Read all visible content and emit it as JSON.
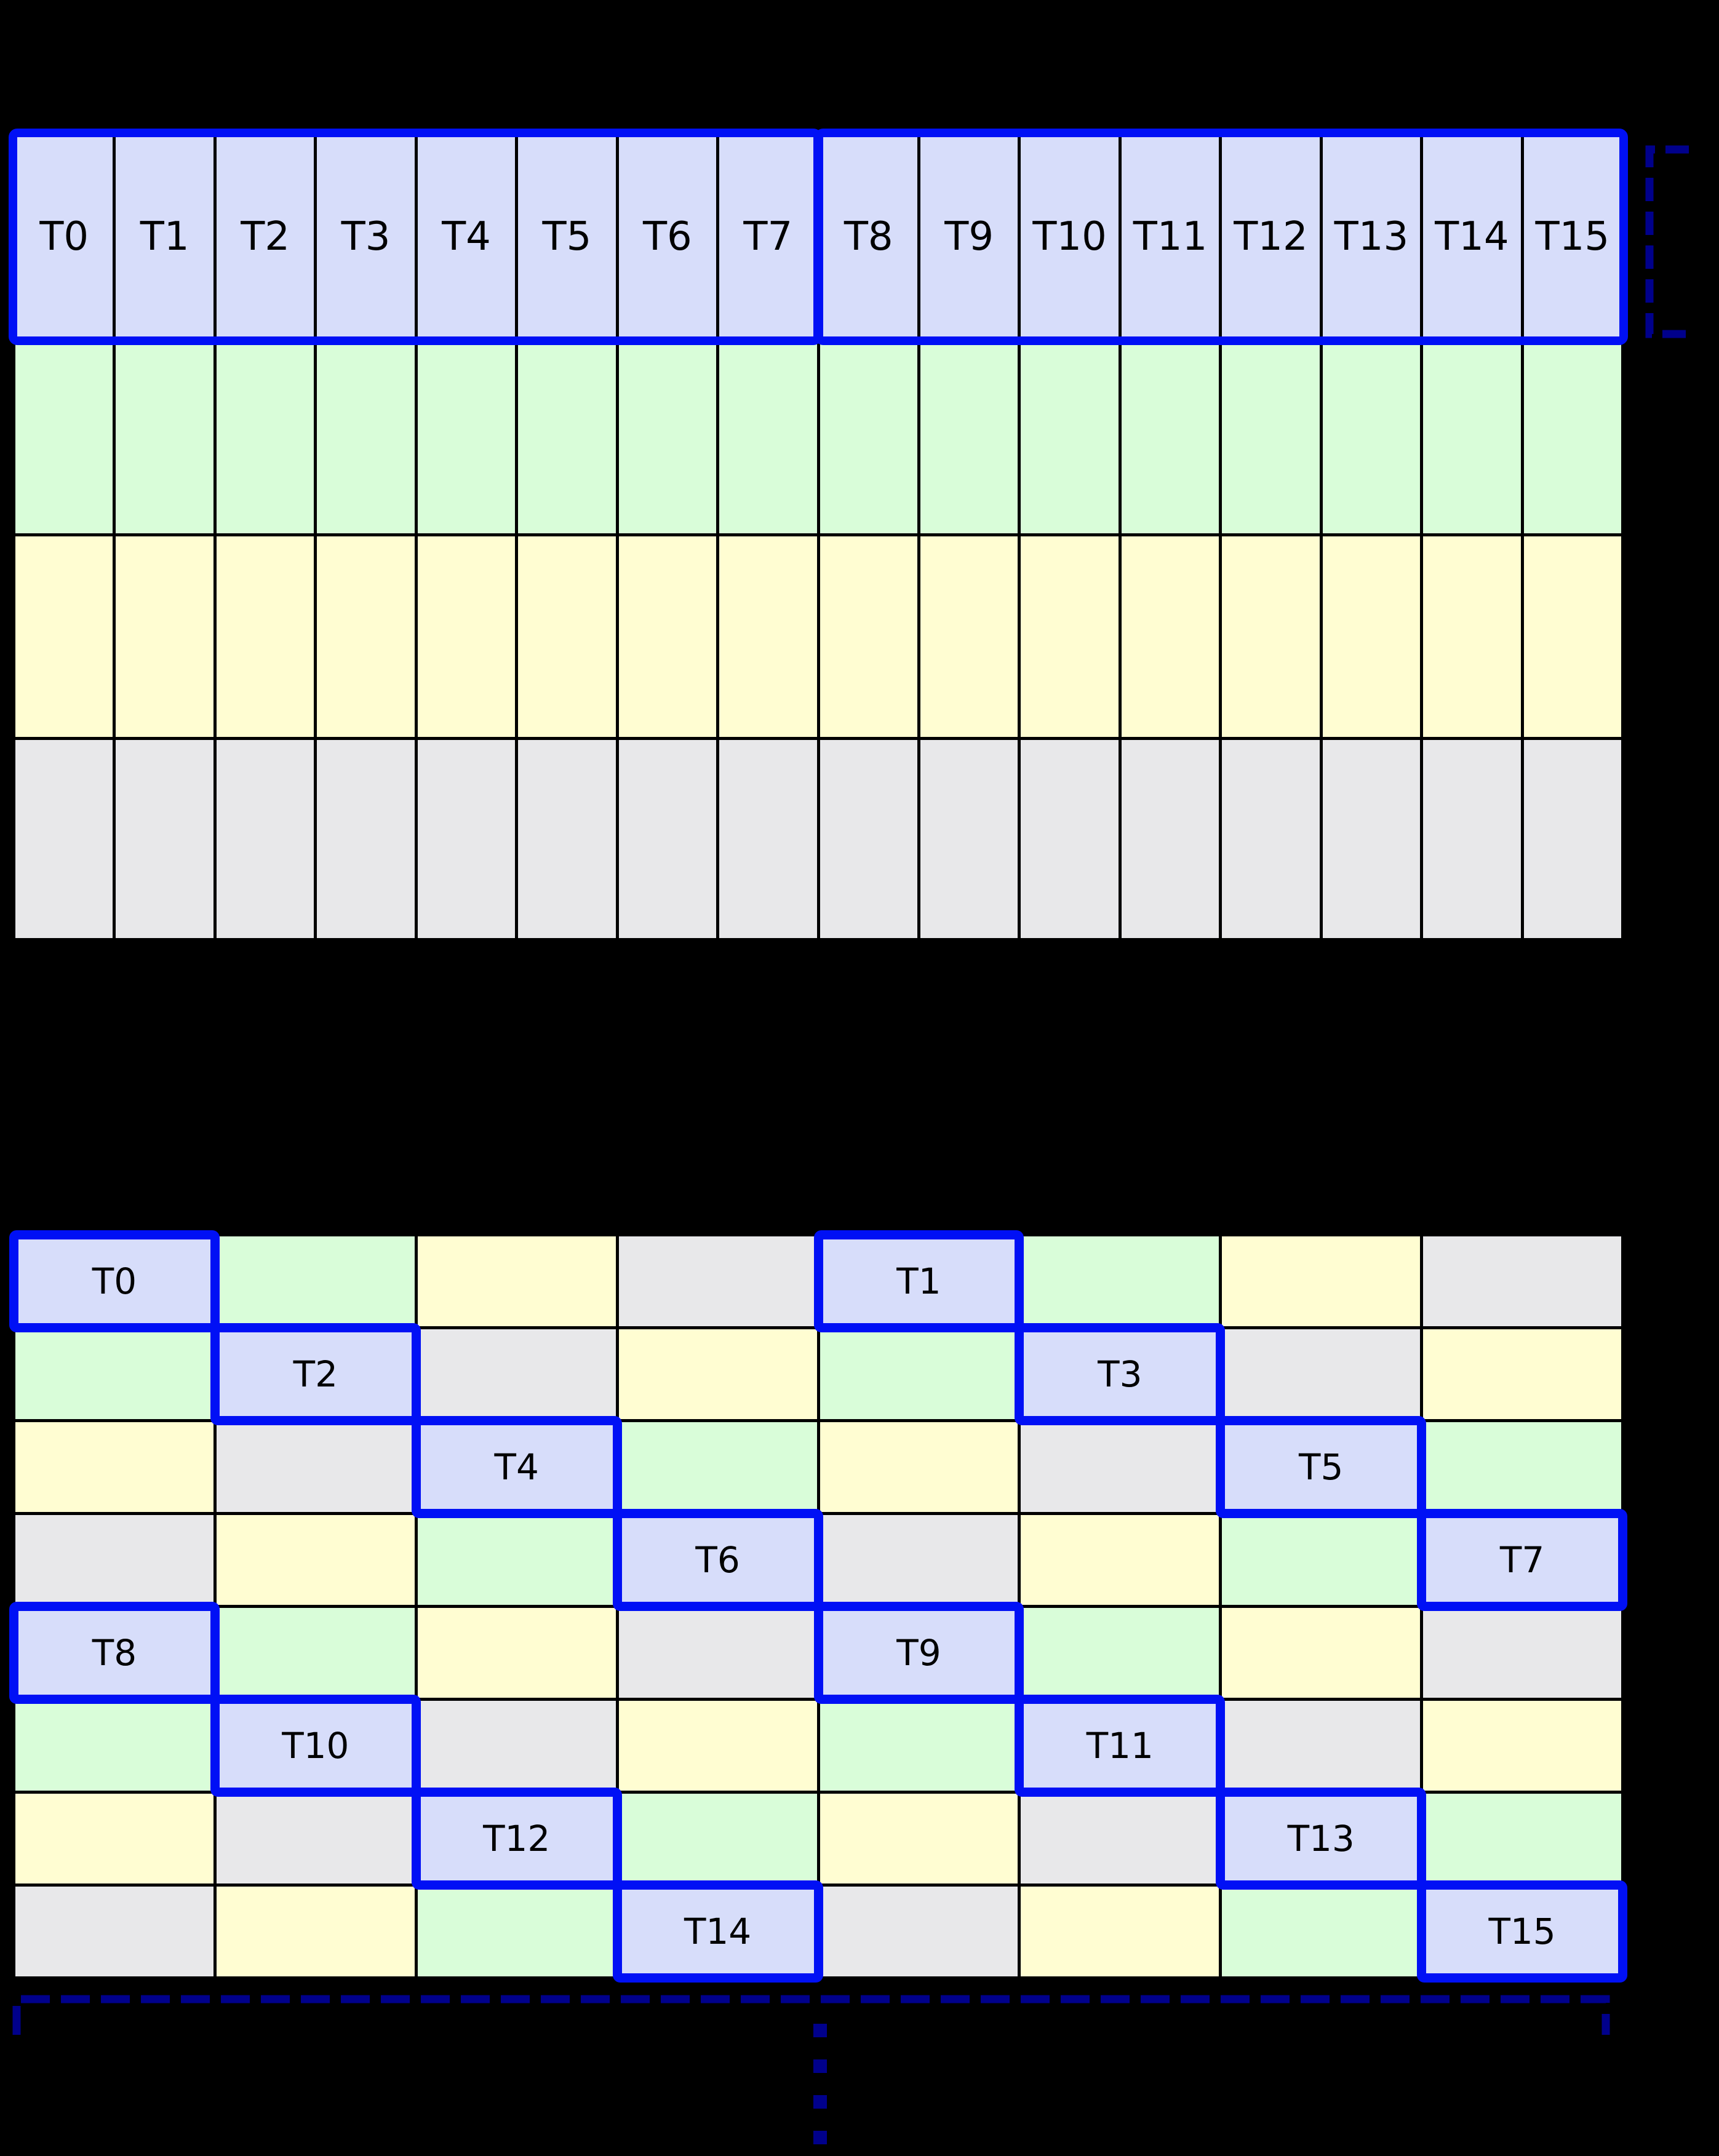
{
  "palette": {
    "blue_outline": "#0010f5",
    "navy": "#00008b",
    "lavender": "#d7ddfa",
    "green": "#d9fdd9",
    "yellow": "#fffdd2",
    "gray": "#e8e8ea",
    "background": "#000000",
    "grid_line": "#000000",
    "label_color": "#000000"
  },
  "top_grid": {
    "columns": 16,
    "header_labels": [
      "T0",
      "T1",
      "T2",
      "T3",
      "T4",
      "T5",
      "T6",
      "T7",
      "T8",
      "T9",
      "T10",
      "T11",
      "T12",
      "T13",
      "T14",
      "T15"
    ],
    "header_groups": [
      {
        "name": "threads-0-7",
        "start": 0,
        "end": 7
      },
      {
        "name": "threads-8-15",
        "start": 8,
        "end": 15
      }
    ],
    "body_rows": [
      "green",
      "yellow",
      "gray"
    ]
  },
  "header_bracket": {
    "style": "dashed",
    "color_key": "navy",
    "opens": "right"
  },
  "bottom_grid": {
    "rows": 8,
    "columns": 8,
    "color_cycle": [
      "blue",
      "green",
      "yellow",
      "gray"
    ],
    "cell_colors": [
      [
        "blue",
        "green",
        "yellow",
        "gray",
        "blue",
        "green",
        "yellow",
        "gray"
      ],
      [
        "green",
        "blue",
        "gray",
        "yellow",
        "green",
        "blue",
        "gray",
        "yellow"
      ],
      [
        "yellow",
        "gray",
        "blue",
        "green",
        "yellow",
        "gray",
        "blue",
        "green"
      ],
      [
        "gray",
        "yellow",
        "green",
        "blue",
        "gray",
        "yellow",
        "green",
        "blue"
      ],
      [
        "blue",
        "green",
        "yellow",
        "gray",
        "blue",
        "green",
        "yellow",
        "gray"
      ],
      [
        "green",
        "blue",
        "gray",
        "yellow",
        "green",
        "blue",
        "gray",
        "yellow"
      ],
      [
        "yellow",
        "gray",
        "blue",
        "green",
        "yellow",
        "gray",
        "blue",
        "green"
      ],
      [
        "gray",
        "yellow",
        "green",
        "blue",
        "gray",
        "yellow",
        "green",
        "blue"
      ]
    ],
    "cell_labels": [
      [
        "T0",
        "",
        "",
        "",
        "T1",
        "",
        "",
        ""
      ],
      [
        "",
        "T2",
        "",
        "",
        "",
        "T3",
        "",
        ""
      ],
      [
        "",
        "",
        "T4",
        "",
        "",
        "",
        "T5",
        ""
      ],
      [
        "",
        "",
        "",
        "T6",
        "",
        "",
        "",
        "T7"
      ],
      [
        "T8",
        "",
        "",
        "",
        "T9",
        "",
        "",
        ""
      ],
      [
        "",
        "T10",
        "",
        "",
        "",
        "T11",
        "",
        ""
      ],
      [
        "",
        "",
        "T12",
        "",
        "",
        "",
        "T13",
        ""
      ],
      [
        "",
        "",
        "",
        "T14",
        "",
        "",
        "",
        "T15"
      ]
    ]
  },
  "bottom_bracket": {
    "style": "dashed",
    "color_key": "navy",
    "opens": "down"
  },
  "ellipsis": {
    "dots": 4,
    "color_key": "navy"
  }
}
